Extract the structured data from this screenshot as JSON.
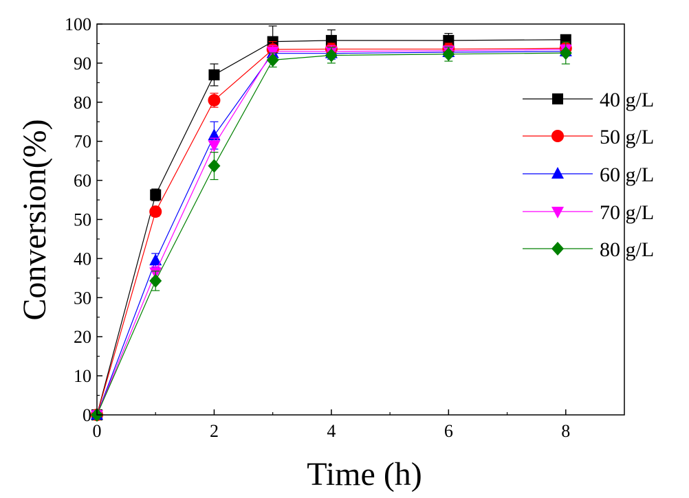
{
  "chart_data": {
    "type": "line",
    "title": "",
    "xlabel": "Time (h)",
    "ylabel": "Conversion(%)",
    "xlim": [
      0,
      9
    ],
    "ylim": [
      0,
      100
    ],
    "x_ticks": [
      0,
      2,
      4,
      6,
      8
    ],
    "x_tick_labels": [
      "0",
      "2",
      "4",
      "6",
      "8"
    ],
    "y_ticks": [
      0,
      10,
      20,
      30,
      40,
      50,
      60,
      70,
      80,
      90,
      100
    ],
    "y_tick_labels": [
      "0",
      "10",
      "20",
      "30",
      "40",
      "50",
      "60",
      "70",
      "80",
      "90",
      "100"
    ],
    "legend_position": "right",
    "x": [
      0,
      1,
      2,
      3,
      4,
      6,
      8
    ],
    "series": [
      {
        "name": "40 g/L",
        "color": "#000000",
        "marker": "square",
        "values": [
          0,
          56.3,
          87.0,
          95.5,
          95.8,
          95.8,
          96.0
        ],
        "errors": [
          0,
          1.5,
          2.8,
          4.0,
          2.7,
          1.8,
          1.2
        ]
      },
      {
        "name": "50 g/L",
        "color": "#ff0000",
        "marker": "circle",
        "values": [
          0,
          52.0,
          80.5,
          93.5,
          93.6,
          93.6,
          93.8
        ],
        "errors": [
          0,
          1.2,
          1.8,
          2.0,
          1.5,
          1.5,
          1.2
        ]
      },
      {
        "name": "60 g/L",
        "color": "#0000ff",
        "marker": "triangle-up",
        "values": [
          0,
          39.5,
          71.5,
          92.5,
          92.5,
          92.8,
          93.0
        ],
        "errors": [
          0,
          1.8,
          3.5,
          1.5,
          1.5,
          1.2,
          1.2
        ]
      },
      {
        "name": "70 g/L",
        "color": "#ff00ff",
        "marker": "triangle-down",
        "values": [
          0,
          36.5,
          69.0,
          93.0,
          93.0,
          93.2,
          93.5
        ],
        "errors": [
          0,
          1.5,
          1.8,
          1.5,
          1.5,
          1.2,
          1.2
        ]
      },
      {
        "name": "80 g/L",
        "color": "#008000",
        "marker": "diamond",
        "values": [
          0,
          34.3,
          63.7,
          90.8,
          92.0,
          92.3,
          92.6
        ],
        "errors": [
          0,
          2.5,
          3.5,
          1.8,
          2.0,
          1.8,
          2.8
        ]
      }
    ]
  }
}
